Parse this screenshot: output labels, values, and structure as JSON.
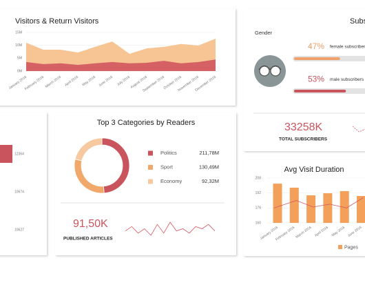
{
  "chart_data": [
    {
      "type": "area",
      "title": "Visitors & Return Visitors",
      "categories": [
        "January 2016",
        "February 2016",
        "March 2016",
        "April 2016",
        "May 2016",
        "June 2016",
        "July 2016",
        "August 2016",
        "September 2016",
        "October 2016",
        "November 2016",
        "December 2016"
      ],
      "series": [
        {
          "color": "#f5bf87",
          "values": [
            11,
            8.3,
            8.3,
            7.2,
            9.4,
            11.5,
            6.7,
            8.8,
            9.4,
            10.5,
            9.9,
            12.6
          ]
        },
        {
          "color": "#d2555f",
          "values": [
            3.5,
            2.7,
            3,
            2.4,
            3,
            3.5,
            3,
            3.2,
            4,
            3,
            3.5,
            4.5
          ]
        }
      ],
      "ylim": [
        0,
        15
      ],
      "yticks": [
        {
          "value": 0,
          "label": "0M"
        },
        {
          "value": 5,
          "label": "5M"
        },
        {
          "value": 10,
          "label": "10M"
        },
        {
          "value": 15,
          "label": "15M"
        }
      ],
      "grid": true
    },
    {
      "type": "hbar",
      "values": [
        12364,
        10674,
        10627
      ],
      "color": "#c9545d"
    },
    {
      "type": "donut",
      "title": "Top 3 Categories by Readers",
      "categories": [
        "Politics",
        "Sport",
        "Economy"
      ],
      "values": [
        211.78,
        130.49,
        92.32
      ],
      "value_labels": [
        "211,78M",
        "130,49M",
        "92,32M"
      ],
      "colors": [
        "#c9545d",
        "#f0a86b",
        "#f7c9a0"
      ]
    },
    {
      "type": "sparkline",
      "values": [
        4,
        6,
        3,
        5,
        2,
        7,
        3,
        8,
        4,
        5,
        3,
        6,
        5,
        7,
        4
      ],
      "color": "#d2555f",
      "dashed": false
    },
    {
      "type": "progress",
      "title": "Subscribers",
      "subtitle": "Gender",
      "categories": [
        "female subscribers",
        "male subscribers"
      ],
      "values": [
        47,
        53
      ],
      "value_labels": [
        "47%",
        "53%"
      ],
      "colors": [
        "#f0a06a",
        "#c9545d"
      ]
    },
    {
      "type": "sparkline",
      "values": [
        6,
        4,
        5,
        2
      ],
      "color": "#d2555f",
      "dashed": true
    },
    {
      "type": "combo",
      "title": "Avg Visit Duration",
      "categories": [
        "January 2016",
        "February 2016",
        "March 2016",
        "April 2016",
        "May 2016",
        "June 2016"
      ],
      "series": [
        {
          "name": "Pages",
          "type": "bar",
          "color": "#f2a05a",
          "values": [
            202,
            197.7,
            189.5,
            191.7,
            194,
            188.8
          ]
        },
        {
          "type": "line",
          "color": "#d2555f",
          "values": [
            176,
            184,
            177,
            180,
            176,
            187
          ]
        }
      ],
      "ylim": [
        160,
        208
      ],
      "yticks": [
        160,
        176,
        192,
        208
      ]
    }
  ],
  "published_articles": {
    "value": "91,50K",
    "label": "PUBLISHED ARTICLES"
  },
  "total_subscribers": {
    "value": "33258K",
    "label": "TOTAL SUBSCRIBERS"
  }
}
